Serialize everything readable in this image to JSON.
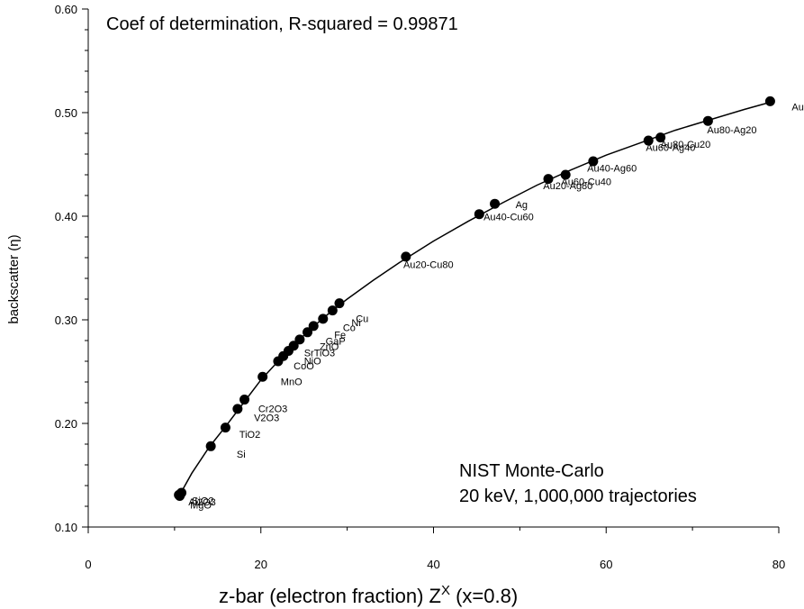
{
  "chart_data": {
    "type": "scatter",
    "xlabel": "z-bar (electron fraction) Z",
    "xlabel_sup": "X",
    "xlabel_suffix": " (x=0.8)",
    "ylabel": "backscatter (η)",
    "xlim": [
      0,
      80
    ],
    "ylim": [
      0.1,
      0.6
    ],
    "x_ticks": [
      "0",
      "20",
      "40",
      "60",
      "80"
    ],
    "y_ticks": [
      "0.10",
      "0.20",
      "0.30",
      "0.40",
      "0.50",
      "0.60"
    ],
    "grid": false,
    "annotations": {
      "r_squared": "Coef of determination, R-squared = 0.99871",
      "source_line1": "NIST Monte-Carlo",
      "source_line2": "20 keV, 1,000,000 trajectories"
    },
    "points": [
      {
        "x": 10.6,
        "y": 0.13
      },
      {
        "x": 10.8,
        "y": 0.133
      },
      {
        "x": 10.5,
        "y": 0.131
      },
      {
        "x": 14.2,
        "y": 0.178
      },
      {
        "x": 15.9,
        "y": 0.196
      },
      {
        "x": 17.3,
        "y": 0.214
      },
      {
        "x": 18.1,
        "y": 0.223
      },
      {
        "x": 20.2,
        "y": 0.245
      },
      {
        "x": 22.0,
        "y": 0.26
      },
      {
        "x": 22.6,
        "y": 0.265
      },
      {
        "x": 23.2,
        "y": 0.27
      },
      {
        "x": 23.8,
        "y": 0.275
      },
      {
        "x": 24.5,
        "y": 0.281
      },
      {
        "x": 25.4,
        "y": 0.288
      },
      {
        "x": 26.1,
        "y": 0.294
      },
      {
        "x": 27.2,
        "y": 0.301
      },
      {
        "x": 28.3,
        "y": 0.309
      },
      {
        "x": 29.1,
        "y": 0.316
      },
      {
        "x": 36.8,
        "y": 0.361
      },
      {
        "x": 45.3,
        "y": 0.402
      },
      {
        "x": 47.1,
        "y": 0.412
      },
      {
        "x": 53.3,
        "y": 0.436
      },
      {
        "x": 55.3,
        "y": 0.44
      },
      {
        "x": 58.5,
        "y": 0.453
      },
      {
        "x": 64.9,
        "y": 0.473
      },
      {
        "x": 66.3,
        "y": 0.476
      },
      {
        "x": 71.8,
        "y": 0.492
      },
      {
        "x": 79.0,
        "y": 0.511
      }
    ],
    "curve": [
      {
        "x": 10.6,
        "y": 0.131
      },
      {
        "x": 12.0,
        "y": 0.152
      },
      {
        "x": 14.0,
        "y": 0.177
      },
      {
        "x": 16.0,
        "y": 0.198
      },
      {
        "x": 18.0,
        "y": 0.22
      },
      {
        "x": 20.0,
        "y": 0.242
      },
      {
        "x": 22.0,
        "y": 0.26
      },
      {
        "x": 24.0,
        "y": 0.277
      },
      {
        "x": 26.0,
        "y": 0.293
      },
      {
        "x": 28.0,
        "y": 0.307
      },
      {
        "x": 30.0,
        "y": 0.32
      },
      {
        "x": 33.0,
        "y": 0.338
      },
      {
        "x": 36.0,
        "y": 0.355
      },
      {
        "x": 40.0,
        "y": 0.376
      },
      {
        "x": 44.0,
        "y": 0.395
      },
      {
        "x": 48.0,
        "y": 0.413
      },
      {
        "x": 52.0,
        "y": 0.43
      },
      {
        "x": 56.0,
        "y": 0.445
      },
      {
        "x": 60.0,
        "y": 0.459
      },
      {
        "x": 64.0,
        "y": 0.471
      },
      {
        "x": 68.0,
        "y": 0.483
      },
      {
        "x": 72.0,
        "y": 0.493
      },
      {
        "x": 76.0,
        "y": 0.503
      },
      {
        "x": 79.0,
        "y": 0.51
      }
    ],
    "point_labels": [
      {
        "text": "Au",
        "x": 81.5,
        "y": 0.502
      },
      {
        "text": "Au80-Ag20",
        "x": 71.7,
        "y": 0.48
      },
      {
        "text": "Au80-Cu20",
        "x": 66.3,
        "y": 0.466
      },
      {
        "text": "Au60-Ag40",
        "x": 64.6,
        "y": 0.463
      },
      {
        "text": "Au40-Ag60",
        "x": 57.8,
        "y": 0.443
      },
      {
        "text": "Au60-Cu40",
        "x": 54.8,
        "y": 0.43
      },
      {
        "text": "Au20-Ag80",
        "x": 52.7,
        "y": 0.426
      },
      {
        "text": "Ag",
        "x": 49.5,
        "y": 0.408
      },
      {
        "text": "Au40-Cu60",
        "x": 45.8,
        "y": 0.396
      },
      {
        "text": "Au20-Cu80",
        "x": 36.5,
        "y": 0.35
      },
      {
        "text": "Cu",
        "x": 31.0,
        "y": 0.298
      },
      {
        "text": "Ni",
        "x": 30.5,
        "y": 0.294
      },
      {
        "text": "Co",
        "x": 29.5,
        "y": 0.289
      },
      {
        "text": "Fe",
        "x": 28.5,
        "y": 0.282
      },
      {
        "text": "GaP",
        "x": 27.5,
        "y": 0.276
      },
      {
        "text": "ZnO",
        "x": 26.8,
        "y": 0.271
      },
      {
        "text": "SrTiO3",
        "x": 25.0,
        "y": 0.265
      },
      {
        "text": "NiO",
        "x": 25.0,
        "y": 0.257
      },
      {
        "text": "CoO",
        "x": 23.8,
        "y": 0.252
      },
      {
        "text": "MnO",
        "x": 22.3,
        "y": 0.237
      },
      {
        "text": "Cr2O3",
        "x": 19.7,
        "y": 0.211
      },
      {
        "text": "V2O3",
        "x": 19.2,
        "y": 0.202
      },
      {
        "text": "TiO2",
        "x": 17.5,
        "y": 0.186
      },
      {
        "text": "Si",
        "x": 17.2,
        "y": 0.167
      },
      {
        "text": "SiO2",
        "x": 12.0,
        "y": 0.122
      },
      {
        "text": "Al2O3",
        "x": 11.6,
        "y": 0.121
      },
      {
        "text": "MgO",
        "x": 11.8,
        "y": 0.118
      }
    ]
  }
}
